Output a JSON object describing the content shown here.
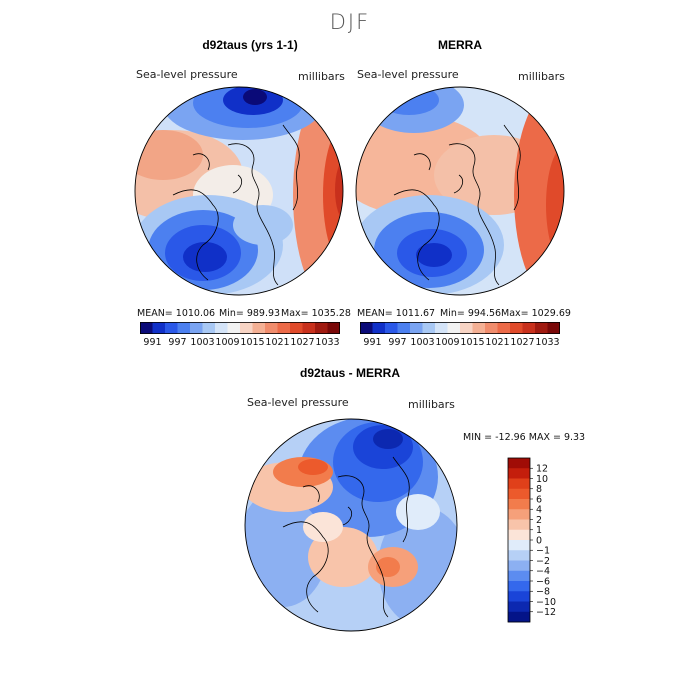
{
  "figure": {
    "title": "DJF"
  },
  "panels": [
    {
      "title": "d92taus (yrs 1-1)",
      "variable": "Sea-level pressure",
      "units": "millibars",
      "mean_text": "MEAN= 1010.06",
      "min_text": "Min=  989.93",
      "max_text": "Max= 1035.28"
    },
    {
      "title": "MERRA",
      "variable": "Sea-level pressure",
      "units": "millibars",
      "mean_text": "MEAN= 1011.67",
      "min_text": "Min=  994.56",
      "max_text": "Max= 1029.69"
    }
  ],
  "abs_colorbar": {
    "labels": [
      "991",
      "997",
      "1003",
      "1009",
      "1015",
      "1021",
      "1027",
      "1033"
    ],
    "colors": [
      "#0a0a78",
      "#1030c8",
      "#2a58e8",
      "#4c80f0",
      "#7aa4f2",
      "#a8c8f4",
      "#d4e4f8",
      "#f2f2f2",
      "#f8d4c4",
      "#f4b094",
      "#f08c6c",
      "#ec6a48",
      "#e04a2a",
      "#c8301c",
      "#a01a10",
      "#7a0808"
    ]
  },
  "diff_panel": {
    "title": "d92taus - MERRA",
    "variable": "Sea-level pressure",
    "units": "millibars",
    "minmax_text": "MIN = -12.96 MAX =   9.33"
  },
  "diff_colorbar": {
    "labels": [
      "12",
      "10",
      "8",
      "6",
      "4",
      "2",
      "1",
      "0",
      "−1",
      "−2",
      "−4",
      "−6",
      "−8",
      "−10",
      "−12"
    ],
    "colors": [
      "#a00c06",
      "#c41e0c",
      "#e0401a",
      "#ec5a2c",
      "#f27c4c",
      "#f6a07a",
      "#f8c4aa",
      "#fbe4d8",
      "#e0ecfa",
      "#b6d0f6",
      "#8cb0f2",
      "#5c8cf0",
      "#3468ec",
      "#1a44d8",
      "#0c28b0",
      "#041488"
    ]
  },
  "map_fields": {
    "background_colors": {
      "land_mixed": "#a9c9f4",
      "pale": "#f3ede8"
    }
  }
}
